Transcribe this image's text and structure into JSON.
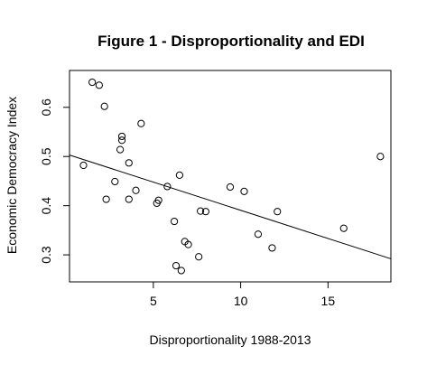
{
  "chart_data": {
    "type": "scatter",
    "title": "Figure 1 - Disproportionality and EDI",
    "xlabel": "Disproportionality 1988-2013",
    "ylabel": "Economic Democracy Index",
    "xlim": [
      0.2,
      18.6
    ],
    "ylim": [
      0.245,
      0.675
    ],
    "xticks": [
      5,
      10,
      15
    ],
    "yticks": [
      0.3,
      0.4,
      0.5,
      0.6
    ],
    "xtick_labels": [
      "5",
      "10",
      "15"
    ],
    "ytick_labels": [
      "0.3",
      "0.4",
      "0.5",
      "0.6"
    ],
    "grid": false,
    "legend": "none",
    "points": [
      {
        "x": 1.0,
        "y": 0.482
      },
      {
        "x": 1.5,
        "y": 0.651
      },
      {
        "x": 1.9,
        "y": 0.645
      },
      {
        "x": 2.2,
        "y": 0.602
      },
      {
        "x": 2.3,
        "y": 0.413
      },
      {
        "x": 2.8,
        "y": 0.449
      },
      {
        "x": 3.1,
        "y": 0.514
      },
      {
        "x": 3.2,
        "y": 0.533
      },
      {
        "x": 3.2,
        "y": 0.541
      },
      {
        "x": 3.6,
        "y": 0.487
      },
      {
        "x": 3.6,
        "y": 0.413
      },
      {
        "x": 4.0,
        "y": 0.431
      },
      {
        "x": 4.3,
        "y": 0.567
      },
      {
        "x": 5.2,
        "y": 0.405
      },
      {
        "x": 5.3,
        "y": 0.411
      },
      {
        "x": 5.8,
        "y": 0.439
      },
      {
        "x": 6.2,
        "y": 0.368
      },
      {
        "x": 6.3,
        "y": 0.278
      },
      {
        "x": 6.5,
        "y": 0.462
      },
      {
        "x": 6.6,
        "y": 0.268
      },
      {
        "x": 6.8,
        "y": 0.327
      },
      {
        "x": 7.0,
        "y": 0.321
      },
      {
        "x": 7.6,
        "y": 0.296
      },
      {
        "x": 7.7,
        "y": 0.389
      },
      {
        "x": 8.0,
        "y": 0.388
      },
      {
        "x": 9.4,
        "y": 0.438
      },
      {
        "x": 10.2,
        "y": 0.429
      },
      {
        "x": 11.0,
        "y": 0.342
      },
      {
        "x": 11.8,
        "y": 0.314
      },
      {
        "x": 12.1,
        "y": 0.388
      },
      {
        "x": 15.9,
        "y": 0.354
      },
      {
        "x": 18.0,
        "y": 0.5
      }
    ],
    "fit_line": {
      "x": [
        0.2,
        18.6
      ],
      "y": [
        0.503,
        0.292
      ]
    }
  }
}
